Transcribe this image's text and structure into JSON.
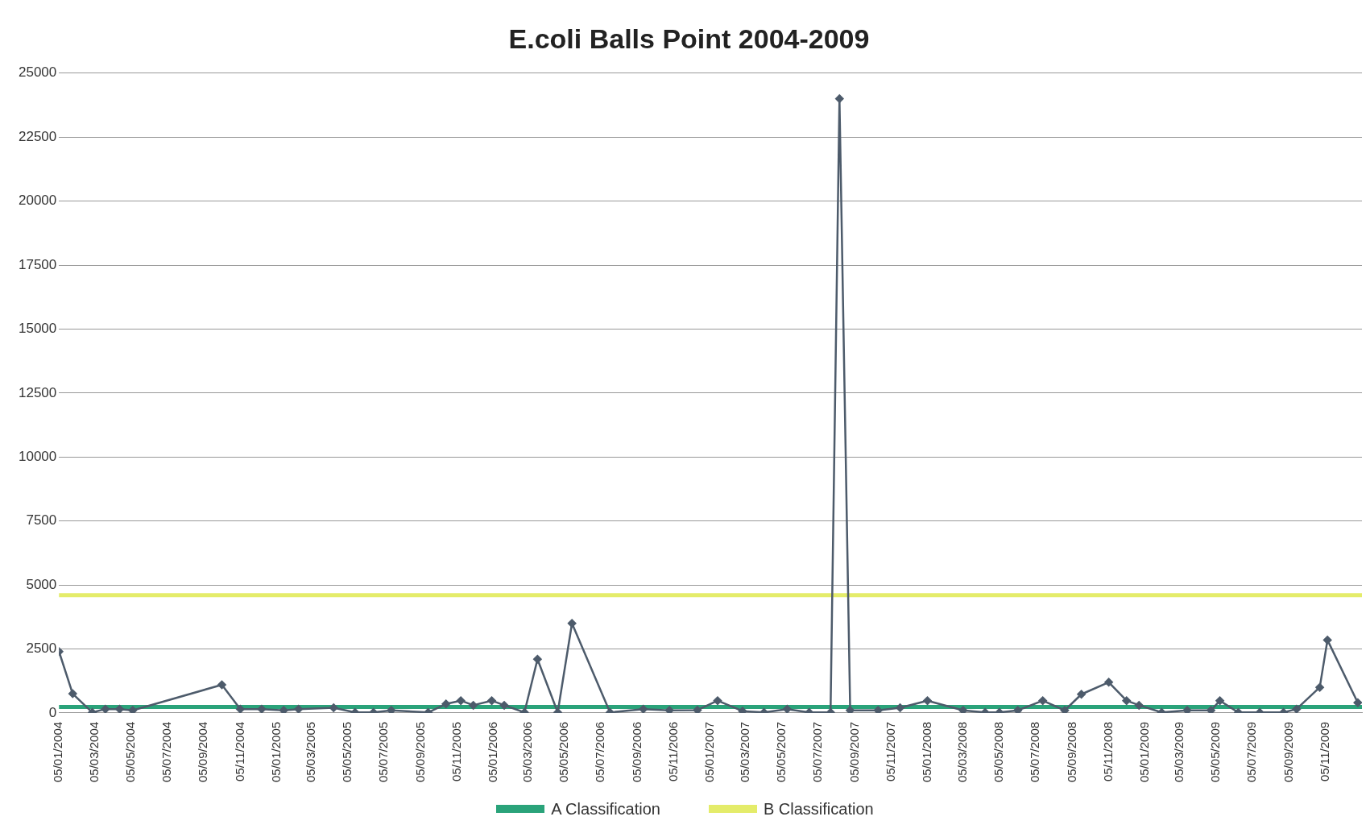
{
  "chart_data": {
    "type": "line",
    "title": "E.coli Balls Point 2004-2009",
    "x": [
      "2004-01-05",
      "2004-01-28",
      "2004-03-01",
      "2004-03-23",
      "2004-04-16",
      "2004-05-08",
      "2004-10-05",
      "2004-11-05",
      "2004-12-11",
      "2005-01-17",
      "2005-02-11",
      "2005-04-11",
      "2005-05-17",
      "2005-06-17",
      "2005-07-17",
      "2005-09-17",
      "2005-10-17",
      "2005-11-11",
      "2005-12-02",
      "2006-01-02",
      "2006-01-23",
      "2006-02-26",
      "2006-03-20",
      "2006-04-23",
      "2006-05-17",
      "2006-07-20",
      "2006-09-14",
      "2006-10-28",
      "2006-12-14",
      "2007-01-17",
      "2007-02-28",
      "2007-04-05",
      "2007-05-14",
      "2007-06-20",
      "2007-07-26",
      "2007-08-10",
      "2007-08-28",
      "2007-10-14",
      "2007-11-20",
      "2008-01-05",
      "2008-03-05",
      "2008-04-11",
      "2008-05-05",
      "2008-06-05",
      "2008-07-17",
      "2008-08-23",
      "2008-09-20",
      "2008-11-05",
      "2008-12-05",
      "2008-12-26",
      "2009-02-02",
      "2009-03-17",
      "2009-04-26",
      "2009-05-11",
      "2009-06-11",
      "2009-07-17",
      "2009-08-26",
      "2009-09-17",
      "2009-10-26",
      "2009-11-08",
      "2009-12-29"
    ],
    "series": [
      {
        "color": "#4d5b6b",
        "values": [
          2400,
          750,
          20,
          150,
          150,
          100,
          1100,
          150,
          150,
          100,
          150,
          200,
          20,
          20,
          100,
          20,
          350,
          480,
          300,
          480,
          300,
          20,
          2100,
          20,
          3500,
          20,
          150,
          100,
          110,
          480,
          70,
          20,
          150,
          20,
          20,
          24000,
          100,
          100,
          200,
          480,
          100,
          20,
          20,
          100,
          480,
          100,
          730,
          1200,
          480,
          300,
          20,
          100,
          100,
          480,
          20,
          20,
          20,
          150,
          1000,
          2850,
          400
        ]
      }
    ],
    "xlim": [
      "2004-01-05",
      "2010-01-05"
    ],
    "xticks": [
      {
        "value": "2004-01-05",
        "label": "05/01/2004"
      },
      {
        "value": "2004-03-05",
        "label": "05/03/2004"
      },
      {
        "value": "2004-05-05",
        "label": "05/05/2004"
      },
      {
        "value": "2004-07-05",
        "label": "05/07/2004"
      },
      {
        "value": "2004-09-05",
        "label": "05/09/2004"
      },
      {
        "value": "2004-11-05",
        "label": "05/11/2004"
      },
      {
        "value": "2005-01-05",
        "label": "05/01/2005"
      },
      {
        "value": "2005-03-05",
        "label": "05/03/2005"
      },
      {
        "value": "2005-05-05",
        "label": "05/05/2005"
      },
      {
        "value": "2005-07-05",
        "label": "05/07/2005"
      },
      {
        "value": "2005-09-05",
        "label": "05/09/2005"
      },
      {
        "value": "2005-11-05",
        "label": "05/11/2005"
      },
      {
        "value": "2006-01-05",
        "label": "05/01/2006"
      },
      {
        "value": "2006-03-05",
        "label": "05/03/2006"
      },
      {
        "value": "2006-05-05",
        "label": "05/05/2006"
      },
      {
        "value": "2006-07-05",
        "label": "05/07/2006"
      },
      {
        "value": "2006-09-05",
        "label": "05/09/2006"
      },
      {
        "value": "2006-11-05",
        "label": "05/11/2006"
      },
      {
        "value": "2007-01-05",
        "label": "05/01/2007"
      },
      {
        "value": "2007-03-05",
        "label": "05/03/2007"
      },
      {
        "value": "2007-05-05",
        "label": "05/05/2007"
      },
      {
        "value": "2007-07-05",
        "label": "05/07/2007"
      },
      {
        "value": "2007-09-05",
        "label": "05/09/2007"
      },
      {
        "value": "2007-11-05",
        "label": "05/11/2007"
      },
      {
        "value": "2008-01-05",
        "label": "05/01/2008"
      },
      {
        "value": "2008-03-05",
        "label": "05/03/2008"
      },
      {
        "value": "2008-05-05",
        "label": "05/05/2008"
      },
      {
        "value": "2008-07-05",
        "label": "05/07/2008"
      },
      {
        "value": "2008-09-05",
        "label": "05/09/2008"
      },
      {
        "value": "2008-11-05",
        "label": "05/11/2008"
      },
      {
        "value": "2009-01-05",
        "label": "05/01/2009"
      },
      {
        "value": "2009-03-05",
        "label": "05/03/2009"
      },
      {
        "value": "2009-05-05",
        "label": "05/05/2009"
      },
      {
        "value": "2009-07-05",
        "label": "05/07/2009"
      },
      {
        "value": "2009-09-05",
        "label": "05/09/2009"
      },
      {
        "value": "2009-11-05",
        "label": "05/11/2009"
      }
    ],
    "ylim": [
      0,
      25000
    ],
    "yticks": [
      0,
      2500,
      5000,
      7500,
      10000,
      12500,
      15000,
      17500,
      20000,
      22500,
      25000
    ],
    "ref_lines": [
      {
        "axis": "y",
        "value": 230,
        "label": "A Classification",
        "color": "#2aa37a"
      },
      {
        "axis": "y",
        "value": 4600,
        "label": "B Classification",
        "color": "#e4ec6a"
      }
    ],
    "grid": "y",
    "legend": "bottom",
    "marker": "diamond",
    "line_style": "solid"
  }
}
